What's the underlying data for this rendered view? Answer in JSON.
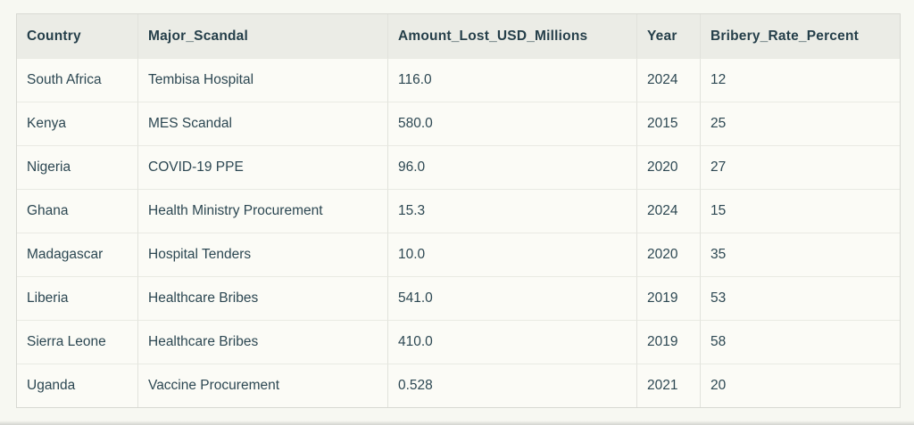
{
  "table": {
    "columns": [
      "Country",
      "Major_Scandal",
      "Amount_Lost_USD_Millions",
      "Year",
      "Bribery_Rate_Percent"
    ],
    "rows": [
      [
        "South Africa",
        "Tembisa Hospital",
        "116.0",
        "2024",
        "12"
      ],
      [
        "Kenya",
        "MES Scandal",
        "580.0",
        "2015",
        "25"
      ],
      [
        "Nigeria",
        "COVID-19 PPE",
        "96.0",
        "2020",
        "27"
      ],
      [
        "Ghana",
        "Health Ministry Procurement",
        "15.3",
        "2024",
        "15"
      ],
      [
        "Madagascar",
        "Hospital Tenders",
        "10.0",
        "2020",
        "35"
      ],
      [
        "Liberia",
        "Healthcare Bribes",
        "541.0",
        "2019",
        "53"
      ],
      [
        "Sierra Leone",
        "Healthcare Bribes",
        "410.0",
        "2019",
        "58"
      ],
      [
        "Uganda",
        "Vaccine Procurement",
        "0.528",
        "2021",
        "20"
      ]
    ]
  },
  "chart_data": {
    "type": "table",
    "columns": [
      "Country",
      "Major_Scandal",
      "Amount_Lost_USD_Millions",
      "Year",
      "Bribery_Rate_Percent"
    ],
    "rows": [
      [
        "South Africa",
        "Tembisa Hospital",
        116.0,
        2024,
        12
      ],
      [
        "Kenya",
        "MES Scandal",
        580.0,
        2015,
        25
      ],
      [
        "Nigeria",
        "COVID-19 PPE",
        96.0,
        2020,
        27
      ],
      [
        "Ghana",
        "Health Ministry Procurement",
        15.3,
        2024,
        15
      ],
      [
        "Madagascar",
        "Hospital Tenders",
        10.0,
        2020,
        35
      ],
      [
        "Liberia",
        "Healthcare Bribes",
        541.0,
        2019,
        53
      ],
      [
        "Sierra Leone",
        "Healthcare Bribes",
        410.0,
        2019,
        58
      ],
      [
        "Uganda",
        "Vaccine Procurement",
        0.528,
        2021,
        20
      ]
    ]
  },
  "colors": {
    "page_background": "#f7f8f2",
    "header_background": "#ebece6",
    "row_background": "#fbfbf6",
    "text": "#2c4752",
    "border_outer": "#d8d9d3",
    "border_vertical": "#e1e2dc",
    "border_horizontal": "#e9eae3"
  }
}
